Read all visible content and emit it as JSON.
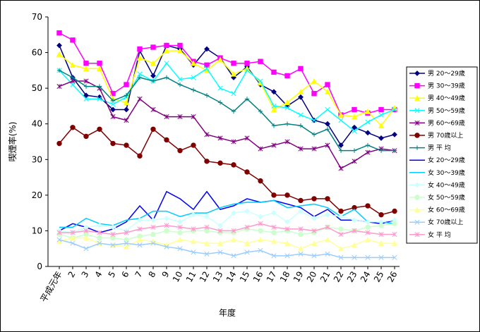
{
  "chart_data": {
    "type": "line",
    "y_label": "喫煙率(%)",
    "x_label": "年度",
    "categories": [
      "平成元年",
      "2",
      "3",
      "4",
      "5",
      "6",
      "7",
      "8",
      "9",
      "10",
      "11",
      "12",
      "13",
      "14",
      "15",
      "16",
      "17",
      "18",
      "19",
      "20",
      "21",
      "22",
      "23",
      "24",
      "25",
      "26"
    ],
    "ylim": [
      0,
      70
    ],
    "yticks": [
      0,
      10,
      20,
      30,
      40,
      50,
      60,
      70
    ],
    "grid": false,
    "series": [
      {
        "name": "男 20～29歳",
        "color": "#000080",
        "marker": "diamond",
        "values": [
          62,
          53,
          48,
          47.5,
          44,
          44,
          60.5,
          53.5,
          62,
          61,
          56.5,
          61,
          58.5,
          53,
          56,
          51,
          49,
          45,
          47.5,
          41,
          40,
          34,
          39,
          37.5,
          36,
          37
        ]
      },
      {
        "name": "男 30～39歳",
        "color": "#ff00ff",
        "marker": "square",
        "values": [
          65.5,
          63.5,
          57,
          57,
          48.5,
          51,
          61,
          61.5,
          62,
          62,
          57.5,
          56.5,
          58.5,
          57,
          57,
          57.5,
          54.5,
          53.5,
          55.5,
          48.5,
          51,
          42.5,
          44,
          43,
          44,
          44
        ]
      },
      {
        "name": "男 40～49歳",
        "color": "#ffff00",
        "marker": "triangle",
        "values": [
          59.5,
          56.5,
          55.5,
          55.5,
          47,
          46,
          58.5,
          57,
          60.5,
          60.5,
          57,
          55,
          58,
          54,
          55.5,
          51.5,
          44,
          46,
          49,
          52,
          49,
          42.5,
          42,
          43.5,
          39.5,
          44.5
        ]
      },
      {
        "name": "男 50～59歳",
        "color": "#00ffff",
        "marker": "x",
        "values": [
          55,
          51,
          47,
          47,
          45.5,
          47.5,
          54,
          52,
          57,
          52.5,
          53,
          55.5,
          50,
          48.5,
          55,
          52,
          45,
          44.5,
          42.5,
          41,
          44,
          41,
          38,
          40.5,
          42.5,
          44
        ]
      },
      {
        "name": "男 60～69歳",
        "color": "#800080",
        "marker": "asterisk",
        "values": [
          50.5,
          52,
          52,
          50,
          42,
          41,
          47,
          44,
          42,
          42,
          42,
          37,
          36,
          35,
          36,
          33,
          34,
          35,
          33,
          33,
          34,
          27.5,
          29.5,
          32,
          33,
          32.5
        ]
      },
      {
        "name": "男 70歳以上",
        "color": "#800000",
        "marker": "circle",
        "values": [
          34.5,
          39,
          36.5,
          38.5,
          34.5,
          34,
          31,
          38.5,
          35.5,
          32.5,
          34,
          29.5,
          29,
          28.5,
          26.5,
          24,
          20,
          20,
          18.5,
          19,
          19,
          15.5,
          16.5,
          17,
          14.5,
          15.5
        ]
      },
      {
        "name": "男 平 均",
        "color": "#008080",
        "marker": "plus",
        "values": [
          55,
          53,
          50.5,
          50.5,
          46.5,
          48,
          53,
          52,
          53,
          51,
          49.5,
          48,
          46,
          43.5,
          47,
          43.5,
          39.5,
          40,
          39.5,
          37,
          38.5,
          32.5,
          32.5,
          34,
          32.5,
          32.5
        ]
      },
      {
        "name": "女 20～29歳",
        "color": "#0000ff",
        "marker": "none",
        "values": [
          10,
          12,
          11,
          9.5,
          10.5,
          12.5,
          17,
          13,
          21,
          19,
          16,
          21,
          16,
          17,
          19,
          18,
          18.5,
          17.5,
          16.5,
          14,
          16,
          13,
          13,
          12.5,
          12,
          13
        ]
      },
      {
        "name": "女 30～39歳",
        "color": "#00ccff",
        "marker": "none",
        "values": [
          11,
          11,
          13.5,
          12,
          11.5,
          13,
          13.5,
          15.5,
          15.5,
          14,
          15,
          15,
          16.5,
          17.5,
          18,
          18,
          18.5,
          16.5,
          17,
          17.5,
          16.5,
          14,
          16,
          12.5,
          12.5,
          12
        ]
      },
      {
        "name": "女 40～49歳",
        "color": "#ccffff",
        "marker": "diamond",
        "values": [
          10,
          9.5,
          11,
          11.5,
          11,
          10,
          13,
          13,
          13.5,
          12.5,
          14.5,
          14,
          11.5,
          15,
          15.5,
          14,
          15,
          12.5,
          15.5,
          13.5,
          14.5,
          14,
          13,
          12.5,
          12.5,
          13
        ]
      },
      {
        "name": "女 50～59歳",
        "color": "#ccffcc",
        "marker": "circle",
        "values": [
          9,
          8,
          9,
          8,
          8,
          7.5,
          8.5,
          9,
          10,
          9.5,
          10,
          10,
          9.5,
          9.5,
          10.5,
          10,
          9.5,
          10,
          9,
          9.5,
          11,
          10.5,
          10,
          11,
          11.5,
          12
        ]
      },
      {
        "name": "女 60～69歳",
        "color": "#ffff99",
        "marker": "triangle",
        "values": [
          7,
          8,
          8,
          6.5,
          6,
          5.5,
          7.5,
          7,
          6,
          7.5,
          7,
          6.5,
          6.5,
          7.5,
          6.5,
          7.5,
          7,
          6.5,
          5,
          6.5,
          7.5,
          5,
          6,
          7.5,
          6.5,
          6.5
        ]
      },
      {
        "name": "女 70歳以上",
        "color": "#99ccff",
        "marker": "x",
        "values": [
          7.5,
          6.5,
          5,
          6.5,
          6,
          6.5,
          6,
          6.5,
          5.5,
          5,
          4,
          3.5,
          4,
          3,
          4,
          4.5,
          3,
          3,
          3.5,
          3,
          3.5,
          2.5,
          2.5,
          2.5,
          2.5,
          2.5
        ]
      },
      {
        "name": "女 平 均",
        "color": "#ff99cc",
        "marker": "asterisk",
        "values": [
          9.5,
          9.5,
          10,
          9.5,
          9,
          9.5,
          10.5,
          11,
          11.5,
          11,
          10.5,
          11,
          10,
          10,
          11,
          12,
          11,
          10.5,
          10.5,
          10,
          11,
          9,
          10,
          9.5,
          9,
          9
        ]
      }
    ]
  }
}
